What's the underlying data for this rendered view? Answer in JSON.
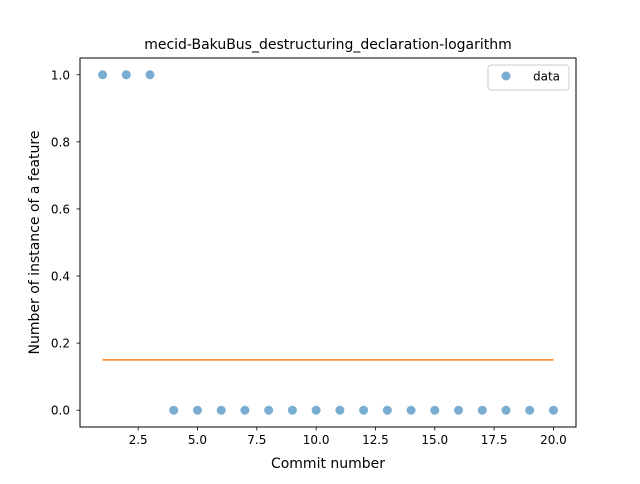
{
  "chart_data": {
    "type": "scatter",
    "title": "mecid-BakuBus_destructuring_declaration-logarithm",
    "xlabel": "Commit number",
    "ylabel": "Number of instance of a feature",
    "xlim": [
      0.05,
      20.95
    ],
    "ylim": [
      -0.05,
      1.05
    ],
    "x_ticks": [
      2.5,
      5.0,
      7.5,
      10.0,
      12.5,
      15.0,
      17.5,
      20.0
    ],
    "x_tick_labels": [
      "2.5",
      "5.0",
      "7.5",
      "10.0",
      "12.5",
      "15.0",
      "17.5",
      "20.0"
    ],
    "y_ticks": [
      0.0,
      0.2,
      0.4,
      0.6,
      0.8,
      1.0
    ],
    "y_tick_labels": [
      "0.0",
      "0.2",
      "0.4",
      "0.6",
      "0.8",
      "1.0"
    ],
    "grid": false,
    "legend_position": "top-right",
    "series": [
      {
        "name": "data",
        "kind": "scatter",
        "color": "#1f77b4",
        "x": [
          1,
          2,
          3,
          4,
          5,
          6,
          7,
          8,
          9,
          10,
          11,
          12,
          13,
          14,
          15,
          16,
          17,
          18,
          19,
          20
        ],
        "y": [
          1,
          1,
          1,
          0,
          0,
          0,
          0,
          0,
          0,
          0,
          0,
          0,
          0,
          0,
          0,
          0,
          0,
          0,
          0,
          0
        ]
      },
      {
        "kind": "line",
        "color": "#ff7f0e",
        "x": [
          1,
          20
        ],
        "y": [
          0.15,
          0.15
        ]
      }
    ]
  }
}
